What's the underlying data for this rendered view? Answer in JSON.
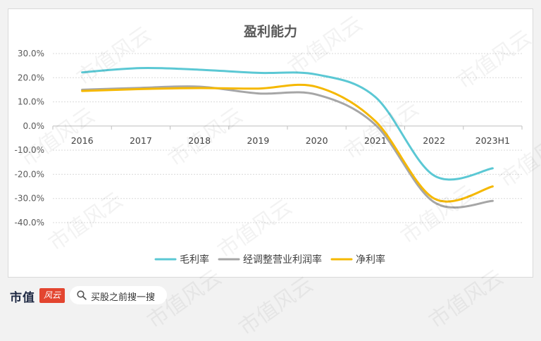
{
  "chart_data": {
    "type": "line",
    "title": "盈利能力",
    "categories": [
      "2016",
      "2017",
      "2018",
      "2019",
      "2020",
      "2021",
      "2022",
      "2023H1"
    ],
    "y_ticks": [
      "30.0%",
      "20.0%",
      "10.0%",
      "0.0%",
      "-10.0%",
      "-20.0%",
      "-30.0%",
      "-40.0%"
    ],
    "ylim": [
      -40,
      30
    ],
    "grid": "horizontal, dashed",
    "legend_position": "bottom",
    "series": [
      {
        "name": "毛利率",
        "color": "#5bc8d4",
        "values": [
          22.2,
          24.0,
          23.3,
          22.0,
          21.3,
          12.0,
          -20.5,
          -17.5
        ]
      },
      {
        "name": "经调整营业利润率",
        "color": "#a6a6a6",
        "values": [
          15.0,
          15.8,
          16.3,
          13.5,
          13.0,
          0.5,
          -31.5,
          -31.0
        ]
      },
      {
        "name": "净利率",
        "color": "#f5b800",
        "values": [
          14.5,
          15.3,
          15.7,
          15.5,
          16.2,
          2.0,
          -30.0,
          -25.0
        ]
      }
    ]
  },
  "footer": {
    "brand": "市值",
    "brand_tag": "风云",
    "search_placeholder": "买股之前搜一搜"
  },
  "watermark": "市值风云"
}
